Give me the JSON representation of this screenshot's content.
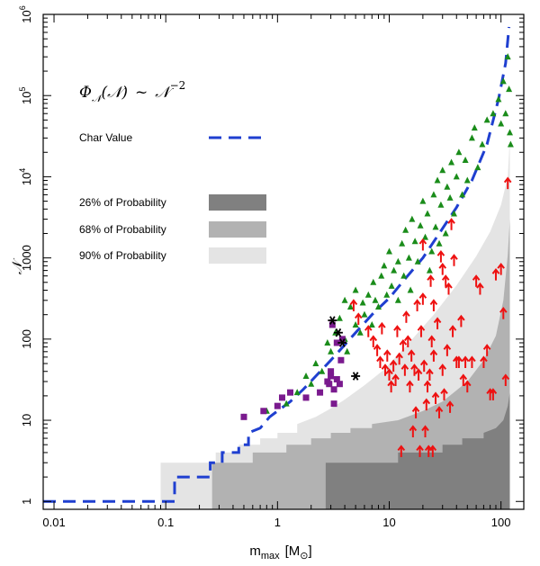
{
  "chart_data": {
    "type": "scatter",
    "xscale": "log",
    "yscale": "log",
    "xlim": [
      0.008,
      160
    ],
    "ylim": [
      0.8,
      1000000
    ],
    "xlabel": "m",
    "xlabel_sub": "max",
    "xlabel_unit": "[M",
    "xlabel_unit_close": "]",
    "ylabel": "𝒩",
    "annotation": {
      "phi": "Φ",
      "sub": "𝒩",
      "arg": "(𝒩)",
      "sim": "~",
      "rhs": "𝒩",
      "exponent": "−2"
    },
    "x_ticks": [
      {
        "value": 0.01,
        "label": "0.01"
      },
      {
        "value": 0.1,
        "label": "0.1"
      },
      {
        "value": 1,
        "label": "1"
      },
      {
        "value": 10,
        "label": "10"
      },
      {
        "value": 100,
        "label": "100"
      }
    ],
    "y_ticks": [
      {
        "value": 1,
        "label": "1",
        "exp": ""
      },
      {
        "value": 10,
        "label": "10",
        "exp": ""
      },
      {
        "value": 100,
        "label": "100",
        "exp": ""
      },
      {
        "value": 1000,
        "label": "1000",
        "exp": ""
      },
      {
        "value": 10000,
        "label": "10",
        "exp": "4"
      },
      {
        "value": 100000,
        "label": "10",
        "exp": "5"
      },
      {
        "value": 1000000,
        "label": "10",
        "exp": "6"
      }
    ],
    "legend": {
      "char_value": "Char Value",
      "bands": [
        {
          "label": "26% of Probability",
          "color": "#808080"
        },
        {
          "label": "68% of Probability",
          "color": "#b2b2b2"
        },
        {
          "label": "90% of Probability",
          "color": "#e4e4e4"
        }
      ]
    },
    "colors": {
      "char_line": "#1f3fd0",
      "triangles": "#1a8c1a",
      "arrows": "#ee1111",
      "squares": "#7a1a8e",
      "stars": "#000000"
    },
    "band90": [
      [
        0.09,
        3
      ],
      [
        0.28,
        3
      ],
      [
        0.28,
        4
      ],
      [
        0.45,
        4
      ],
      [
        0.45,
        5
      ],
      [
        0.7,
        5
      ],
      [
        0.7,
        6
      ],
      [
        1.0,
        6
      ],
      [
        1.0,
        7
      ],
      [
        1.5,
        7
      ],
      [
        1.5,
        9
      ],
      [
        2.2,
        11
      ],
      [
        3,
        14
      ],
      [
        4,
        18
      ],
      [
        6,
        27
      ],
      [
        9,
        42
      ],
      [
        15,
        90
      ],
      [
        25,
        200
      ],
      [
        40,
        460
      ],
      [
        60,
        1050
      ],
      [
        80,
        2100
      ],
      [
        100,
        4500
      ],
      [
        115,
        10000
      ],
      [
        120,
        30000
      ]
    ],
    "band68": [
      [
        0.26,
        1
      ],
      [
        0.26,
        3
      ],
      [
        0.6,
        3
      ],
      [
        0.6,
        4
      ],
      [
        1.2,
        4
      ],
      [
        1.2,
        5
      ],
      [
        2,
        5
      ],
      [
        2,
        6
      ],
      [
        3,
        6
      ],
      [
        3,
        7
      ],
      [
        4.5,
        7
      ],
      [
        4.5,
        8
      ],
      [
        7,
        8
      ],
      [
        7,
        9
      ],
      [
        12,
        10
      ],
      [
        20,
        13
      ],
      [
        30,
        17
      ],
      [
        50,
        30
      ],
      [
        70,
        55
      ],
      [
        90,
        110
      ],
      [
        105,
        300
      ],
      [
        115,
        1100
      ],
      [
        120,
        3000
      ]
    ],
    "band26": [
      [
        2.7,
        1
      ],
      [
        2.7,
        3
      ],
      [
        12,
        3
      ],
      [
        12,
        4
      ],
      [
        30,
        4
      ],
      [
        30,
        5
      ],
      [
        45,
        5
      ],
      [
        45,
        6
      ],
      [
        70,
        6
      ],
      [
        70,
        7
      ],
      [
        90,
        8
      ],
      [
        105,
        10
      ],
      [
        115,
        15
      ],
      [
        120,
        22
      ]
    ],
    "char_value_line": [
      [
        0.008,
        1
      ],
      [
        0.12,
        1
      ],
      [
        0.12,
        2
      ],
      [
        0.2,
        2
      ],
      [
        0.2,
        2
      ],
      [
        0.25,
        2
      ],
      [
        0.25,
        3
      ],
      [
        0.32,
        3
      ],
      [
        0.32,
        4
      ],
      [
        0.45,
        4
      ],
      [
        0.45,
        5
      ],
      [
        0.55,
        5
      ],
      [
        0.55,
        7
      ],
      [
        0.7,
        8
      ],
      [
        0.85,
        11
      ],
      [
        1.0,
        13
      ],
      [
        1.3,
        17
      ],
      [
        1.7,
        24
      ],
      [
        2.2,
        35
      ],
      [
        3,
        55
      ],
      [
        4,
        85
      ],
      [
        5,
        120
      ],
      [
        7,
        200
      ],
      [
        10,
        320
      ],
      [
        14,
        560
      ],
      [
        20,
        1000
      ],
      [
        28,
        2000
      ],
      [
        40,
        4200
      ],
      [
        55,
        9000
      ],
      [
        75,
        25000
      ],
      [
        95,
        90000
      ],
      [
        110,
        250000
      ],
      [
        118,
        700000
      ]
    ],
    "triangles": [
      [
        0.5,
        11
      ],
      [
        0.8,
        13
      ],
      [
        1.2,
        16
      ],
      [
        1.5,
        22
      ],
      [
        1.8,
        35
      ],
      [
        2,
        28
      ],
      [
        2.2,
        50
      ],
      [
        2.5,
        40
      ],
      [
        2.8,
        90
      ],
      [
        3,
        70
      ],
      [
        3.3,
        120
      ],
      [
        3.6,
        180
      ],
      [
        4,
        100
      ],
      [
        4,
        300
      ],
      [
        4.2,
        70
      ],
      [
        4.5,
        250
      ],
      [
        5,
        150
      ],
      [
        5,
        400
      ],
      [
        5.5,
        120
      ],
      [
        5.8,
        280
      ],
      [
        6,
        200
      ],
      [
        6.5,
        350
      ],
      [
        7,
        150
      ],
      [
        7.2,
        500
      ],
      [
        7.5,
        300
      ],
      [
        8,
        250
      ],
      [
        8.5,
        600
      ],
      [
        9,
        800
      ],
      [
        9.5,
        350
      ],
      [
        10,
        1200
      ],
      [
        10.5,
        450
      ],
      [
        11,
        700
      ],
      [
        12,
        900
      ],
      [
        12,
        300
      ],
      [
        13,
        1500
      ],
      [
        13.5,
        600
      ],
      [
        14,
        2200
      ],
      [
        15,
        1000
      ],
      [
        15.5,
        400
      ],
      [
        16,
        3000
      ],
      [
        17,
        1600
      ],
      [
        18,
        900
      ],
      [
        19,
        2500
      ],
      [
        20,
        5000
      ],
      [
        21,
        1800
      ],
      [
        22,
        3500
      ],
      [
        23,
        700
      ],
      [
        24,
        1200
      ],
      [
        25,
        6000
      ],
      [
        26,
        2400
      ],
      [
        27,
        9000
      ],
      [
        28,
        1500
      ],
      [
        29,
        4500
      ],
      [
        30,
        12000
      ],
      [
        32,
        2000
      ],
      [
        33,
        7500
      ],
      [
        35,
        5500
      ],
      [
        36,
        15000
      ],
      [
        38,
        3500
      ],
      [
        40,
        10000
      ],
      [
        42,
        20000
      ],
      [
        45,
        6000
      ],
      [
        48,
        16000
      ],
      [
        50,
        9000
      ],
      [
        55,
        30000
      ],
      [
        58,
        40000
      ],
      [
        62,
        13000
      ],
      [
        68,
        25000
      ],
      [
        75,
        50000
      ],
      [
        85,
        60000
      ],
      [
        95,
        90000
      ],
      [
        105,
        150000
      ],
      [
        115,
        300000
      ],
      [
        118,
        120000
      ],
      [
        120,
        35000
      ],
      [
        122,
        25000
      ],
      [
        110,
        60000
      ],
      [
        100,
        45000
      ]
    ],
    "arrows": [
      [
        4.8,
        250
      ],
      [
        5.3,
        170
      ],
      [
        6.5,
        120
      ],
      [
        7.2,
        90
      ],
      [
        7.8,
        70
      ],
      [
        8.3,
        50
      ],
      [
        8.6,
        130
      ],
      [
        9.2,
        40
      ],
      [
        9.6,
        60
      ],
      [
        10,
        35
      ],
      [
        10.4,
        25
      ],
      [
        10.9,
        45
      ],
      [
        11.4,
        30
      ],
      [
        11.8,
        120
      ],
      [
        12.3,
        55
      ],
      [
        12.8,
        4
      ],
      [
        13.3,
        80
      ],
      [
        13.8,
        40
      ],
      [
        14.2,
        180
      ],
      [
        14.7,
        90
      ],
      [
        15.3,
        25
      ],
      [
        15.8,
        60
      ],
      [
        16.3,
        7
      ],
      [
        16.8,
        40
      ],
      [
        17.3,
        12
      ],
      [
        17.8,
        250
      ],
      [
        18.3,
        35
      ],
      [
        18.8,
        4
      ],
      [
        19.3,
        120
      ],
      [
        20,
        300
      ],
      [
        20.5,
        45
      ],
      [
        21,
        7
      ],
      [
        21.5,
        15
      ],
      [
        22,
        25
      ],
      [
        22.5,
        4
      ],
      [
        23,
        35
      ],
      [
        23.5,
        500
      ],
      [
        24,
        90
      ],
      [
        24.5,
        4
      ],
      [
        25,
        60
      ],
      [
        26,
        18
      ],
      [
        27,
        150
      ],
      [
        28,
        12
      ],
      [
        29,
        1000
      ],
      [
        30,
        40
      ],
      [
        31,
        20
      ],
      [
        32,
        500
      ],
      [
        33,
        70
      ],
      [
        34,
        400
      ],
      [
        35,
        14
      ],
      [
        36,
        2500
      ],
      [
        37,
        120
      ],
      [
        38,
        900
      ],
      [
        40,
        50
      ],
      [
        42,
        50
      ],
      [
        44,
        160
      ],
      [
        46,
        30
      ],
      [
        48,
        50
      ],
      [
        50,
        25
      ],
      [
        55,
        50
      ],
      [
        60,
        500
      ],
      [
        65,
        400
      ],
      [
        70,
        50
      ],
      [
        75,
        70
      ],
      [
        80,
        20
      ],
      [
        85,
        20
      ],
      [
        90,
        600
      ],
      [
        100,
        700
      ],
      [
        105,
        200
      ],
      [
        110,
        30
      ],
      [
        115,
        8000
      ],
      [
        20,
        1400
      ],
      [
        30,
        700
      ],
      [
        25,
        250
      ]
    ],
    "squares": [
      [
        0.5,
        11
      ],
      [
        0.75,
        13
      ],
      [
        1.0,
        15
      ],
      [
        1.1,
        19
      ],
      [
        1.3,
        22
      ],
      [
        1.8,
        19
      ],
      [
        2.4,
        22
      ],
      [
        2.8,
        30
      ],
      [
        2.9,
        28
      ],
      [
        3,
        35
      ],
      [
        3,
        40
      ],
      [
        3.2,
        24
      ],
      [
        3.2,
        16
      ],
      [
        3.4,
        32
      ],
      [
        3.6,
        28
      ],
      [
        3.7,
        55
      ],
      [
        3.4,
        90
      ],
      [
        3.8,
        100
      ],
      [
        3.1,
        150
      ]
    ],
    "stars": [
      [
        3.1,
        170
      ],
      [
        3.5,
        120
      ],
      [
        3.8,
        90
      ],
      [
        5.0,
        35
      ]
    ]
  }
}
